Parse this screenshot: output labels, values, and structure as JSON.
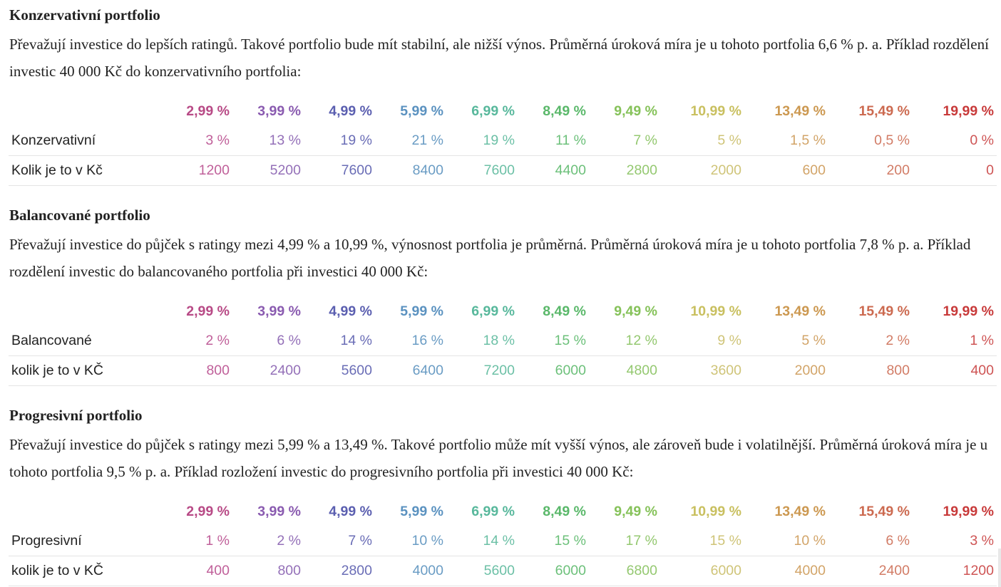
{
  "ratings": [
    "2,99 %",
    "3,99 %",
    "4,99 %",
    "5,99 %",
    "6,99 %",
    "8,49 %",
    "9,49 %",
    "10,99 %",
    "13,49 %",
    "15,49 %",
    "19,99 %"
  ],
  "sections": [
    {
      "title": "Konzervativní portfolio",
      "text": "Převažují investice do lepších ratingů. Takové portfolio bude mít stabilní, ale nižší výnos. Průměrná úroková míra je u tohoto portfolia 6,6 % p. a. Příklad rozdělení investic 40 000 Kč do konzervativního portfolia:",
      "rows": [
        {
          "label": "Konzervativní",
          "values": [
            "3 %",
            "13 %",
            "19 %",
            "21 %",
            "19 %",
            "11 %",
            "7 %",
            "5 %",
            "1,5 %",
            "0,5 %",
            "0 %"
          ]
        },
        {
          "label": "Kolik je to v Kč",
          "values": [
            "1200",
            "5200",
            "7600",
            "8400",
            "7600",
            "4400",
            "2800",
            "2000",
            "600",
            "200",
            "0"
          ]
        }
      ]
    },
    {
      "title": "Balancované portfolio",
      "text": "Převažují investice do půjček s ratingy mezi 4,99 % a 10,99 %, výnosnost portfolia je průměrná. Průměrná úroková míra je u tohoto portfolia 7,8 % p. a. Příklad rozdělení investic do balancovaného portfolia při investici 40 000 Kč:",
      "rows": [
        {
          "label": "Balancované",
          "values": [
            "2 %",
            "6 %",
            "14 %",
            "16 %",
            "18 %",
            "15 %",
            "12 %",
            "9 %",
            "5 %",
            "2 %",
            "1 %"
          ]
        },
        {
          "label": "kolik je to v KČ",
          "values": [
            "800",
            "2400",
            "5600",
            "6400",
            "7200",
            "6000",
            "4800",
            "3600",
            "2000",
            "800",
            "400"
          ]
        }
      ]
    },
    {
      "title": "Progresivní portfolio",
      "text": "Převažují investice do půjček s ratingy mezi 5,99 % a 13,49 %. Takové portfolio může mít vyšší výnos, ale zároveň bude i volatilnější. Průměrná úroková míra je u tohoto portfolia 9,5 % p. a. Příklad rozložení investic do progresivního portfolia při investici 40 000 Kč:",
      "rows": [
        {
          "label": "Progresivní",
          "values": [
            "1 %",
            "2 %",
            "7 %",
            "10 %",
            "14 %",
            "15 %",
            "17 %",
            "15 %",
            "10 %",
            "6 %",
            "3 %"
          ]
        },
        {
          "label": "kolik je to v KČ",
          "values": [
            "400",
            "800",
            "2800",
            "4000",
            "5600",
            "6000",
            "6800",
            "6000",
            "4000",
            "2400",
            "1200"
          ]
        }
      ]
    }
  ]
}
